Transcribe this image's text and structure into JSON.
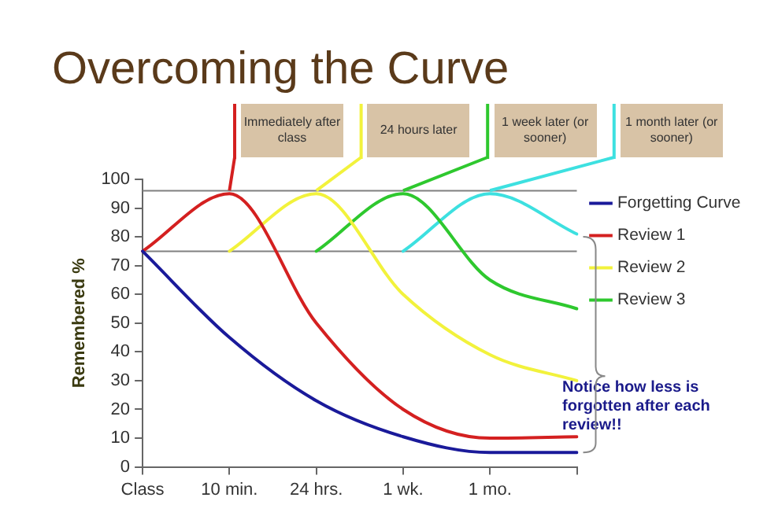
{
  "chart_data": {
    "type": "line",
    "title": "Overcoming the Curve",
    "ylabel": "Remembered %",
    "annotations": [
      {
        "text": "Immediately after class",
        "x": "10 min.",
        "y": 95
      },
      "24 hours later",
      "1 week later (or sooner)",
      "1 month later (or sooner)",
      "Notice how less is forgotten after each review!!"
    ],
    "categories": [
      "Class",
      "10 min.",
      "24 hrs.",
      "1 wk.",
      "1 mo.",
      null
    ],
    "series": [
      {
        "name": "Forgetting Curve",
        "color": "#1a1a9a",
        "values": [
          75,
          45,
          23,
          10.5,
          5,
          5
        ]
      },
      {
        "name": "Review 1",
        "color": "#d42020",
        "values": [
          75,
          95,
          50,
          20,
          10,
          10.5
        ]
      },
      {
        "name": "Review 2",
        "color": "#f2f23c",
        "values": [
          null,
          75,
          95,
          60,
          39,
          30
        ]
      },
      {
        "name": "Review 3",
        "color": "#2ec82e",
        "values": [
          null,
          null,
          75,
          95,
          65,
          55
        ]
      },
      {
        "color": "#3de0e0",
        "values": [
          null,
          null,
          null,
          75,
          95,
          81
        ]
      }
    ],
    "ylim": [
      0,
      100
    ],
    "yticks": [
      0,
      10,
      20,
      30,
      40,
      50,
      60,
      70,
      80,
      90,
      100
    ],
    "ref_lines": [
      {
        "axis": "y",
        "value": 96,
        "color": "#808080"
      },
      {
        "axis": "y",
        "value": 75,
        "color": "#808080"
      }
    ],
    "grid": false,
    "legend": "right",
    "marker": "none",
    "line_style": "solid"
  }
}
